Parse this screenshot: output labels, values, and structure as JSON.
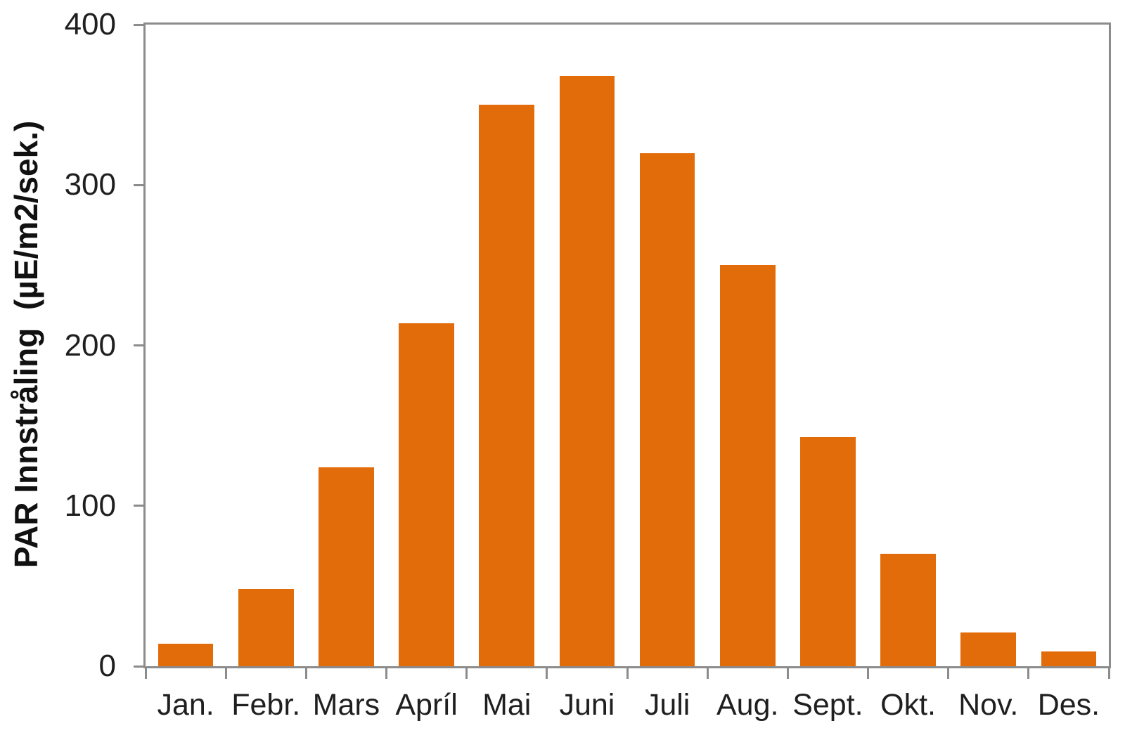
{
  "chart_data": {
    "type": "bar",
    "title": "",
    "xlabel": "",
    "ylabel": "PAR Innstråling  (µE/m2/sek.)",
    "categories": [
      "Jan.",
      "Febr.",
      "Mars",
      "Apríl",
      "Mai",
      "Juni",
      "Juli",
      "Aug.",
      "Sept.",
      "Okt.",
      "Nov.",
      "Des."
    ],
    "values": [
      14,
      48,
      124,
      214,
      350,
      368,
      320,
      250,
      143,
      70,
      21,
      9
    ],
    "ylim": [
      0,
      400
    ],
    "yticks": [
      0,
      100,
      200,
      300,
      400
    ],
    "grid": false,
    "legend_position": "none",
    "bar_color": "#E36C0A",
    "axis_color": "#8C8C8C",
    "text_color": "#1F1F1F",
    "background_color": "#FFFFFF"
  }
}
